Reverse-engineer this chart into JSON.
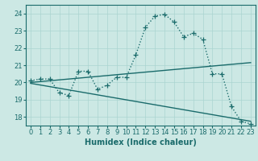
{
  "xlabel": "Humidex (Indice chaleur)",
  "background_color": "#cce8e4",
  "grid_color": "#aad4d0",
  "line_color": "#1a6b6b",
  "xlim": [
    -0.5,
    23.5
  ],
  "ylim": [
    17.5,
    24.5
  ],
  "xticks": [
    0,
    1,
    2,
    3,
    4,
    5,
    6,
    7,
    8,
    9,
    10,
    11,
    12,
    13,
    14,
    15,
    16,
    17,
    18,
    19,
    20,
    21,
    22,
    23
  ],
  "yticks": [
    18,
    19,
    20,
    21,
    22,
    23,
    24
  ],
  "main_x": [
    0,
    1,
    2,
    3,
    4,
    5,
    6,
    7,
    8,
    9,
    10,
    11,
    12,
    13,
    14,
    15,
    16,
    17,
    18,
    19,
    20,
    21,
    22,
    23
  ],
  "main_y": [
    20.1,
    20.2,
    20.2,
    19.4,
    19.25,
    20.65,
    20.65,
    19.6,
    19.85,
    20.3,
    20.3,
    21.6,
    23.2,
    23.85,
    23.95,
    23.5,
    22.65,
    22.85,
    22.5,
    20.5,
    20.5,
    18.6,
    17.75,
    17.6
  ],
  "trend1_x": [
    0,
    23
  ],
  "trend1_y": [
    20.0,
    21.15
  ],
  "trend2_x": [
    0,
    23
  ],
  "trend2_y": [
    19.95,
    17.75
  ],
  "markersize": 4,
  "linewidth": 1.0,
  "tick_fontsize": 6,
  "xlabel_fontsize": 7
}
